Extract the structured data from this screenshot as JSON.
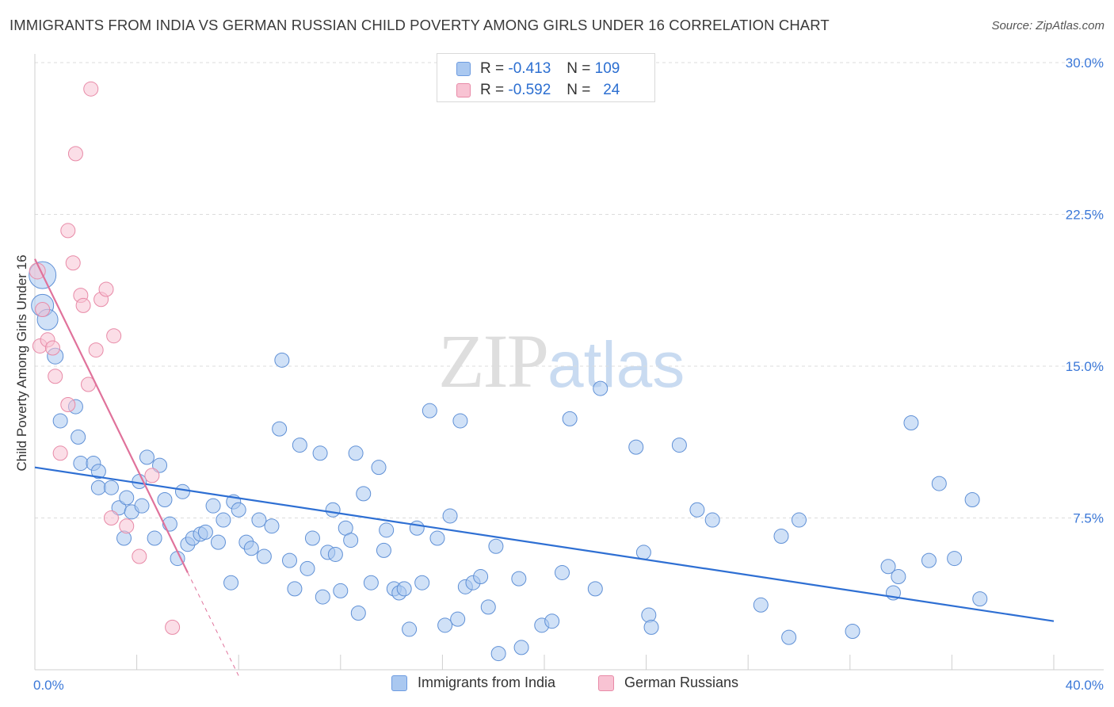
{
  "chart_data": {
    "type": "scatter",
    "title": "IMMIGRANTS FROM INDIA VS GERMAN RUSSIAN CHILD POVERTY AMONG GIRLS UNDER 16 CORRELATION CHART",
    "source": "Source: ZipAtlas.com",
    "xlabel": "",
    "ylabel": "Child Poverty Among Girls Under 16",
    "xlim": [
      0,
      40
    ],
    "ylim": [
      0,
      30
    ],
    "x_tick_labels": [
      "0.0%",
      "40.0%"
    ],
    "y_tick_labels": [
      "30.0%",
      "22.5%",
      "15.0%",
      "7.5%"
    ],
    "y_ticks": [
      30,
      22.5,
      15,
      7.5
    ],
    "grid": true,
    "watermark": {
      "left": "ZIP",
      "right": "atlas"
    },
    "legend": [
      {
        "r_label": "R =",
        "r": "-0.413",
        "n_label": "N =",
        "n": "109",
        "color": "#aac8f0",
        "border": "#6d9be0"
      },
      {
        "r_label": "R =",
        "r": "-0.592",
        "n_label": "N =",
        "n": "24",
        "color": "#f8c3d3",
        "border": "#e88aa7"
      }
    ],
    "series": [
      {
        "name": "Immigrants from India",
        "color": "#aac8f0",
        "border": "#5f90d6",
        "trend": {
          "x": [
            0,
            40
          ],
          "y": [
            10.0,
            2.4
          ],
          "color": "#2e6fd3"
        },
        "points": [
          [
            0.3,
            19.5,
            17
          ],
          [
            0.3,
            18.0,
            14
          ],
          [
            0.5,
            17.3,
            13
          ],
          [
            0.8,
            15.5,
            10
          ],
          [
            1.0,
            12.3,
            9
          ],
          [
            1.6,
            13.0,
            9
          ],
          [
            1.7,
            11.5,
            9
          ],
          [
            1.8,
            10.2,
            9
          ],
          [
            2.3,
            10.2,
            9
          ],
          [
            2.5,
            9.8,
            9
          ],
          [
            2.5,
            9.0,
            9
          ],
          [
            3.0,
            9.0,
            9
          ],
          [
            3.3,
            8.0,
            9
          ],
          [
            3.5,
            6.5,
            9
          ],
          [
            3.6,
            8.5,
            9
          ],
          [
            3.8,
            7.8,
            9
          ],
          [
            4.1,
            9.3,
            9
          ],
          [
            4.2,
            8.1,
            9
          ],
          [
            4.4,
            10.5,
            9
          ],
          [
            4.7,
            6.5,
            9
          ],
          [
            4.9,
            10.1,
            9
          ],
          [
            5.1,
            8.4,
            9
          ],
          [
            5.3,
            7.2,
            9
          ],
          [
            5.6,
            5.5,
            9
          ],
          [
            5.8,
            8.8,
            9
          ],
          [
            6.0,
            6.2,
            9
          ],
          [
            6.2,
            6.5,
            9
          ],
          [
            6.5,
            6.7,
            9
          ],
          [
            6.7,
            6.8,
            9
          ],
          [
            7.0,
            8.1,
            9
          ],
          [
            7.2,
            6.3,
            9
          ],
          [
            7.4,
            7.4,
            9
          ],
          [
            7.7,
            4.3,
            9
          ],
          [
            7.8,
            8.3,
            9
          ],
          [
            8.0,
            7.9,
            9
          ],
          [
            8.3,
            6.3,
            9
          ],
          [
            8.5,
            6.0,
            9
          ],
          [
            8.8,
            7.4,
            9
          ],
          [
            9.0,
            5.6,
            9
          ],
          [
            9.3,
            7.1,
            9
          ],
          [
            9.6,
            11.9,
            9
          ],
          [
            9.7,
            15.3,
            9
          ],
          [
            10.0,
            5.4,
            9
          ],
          [
            10.2,
            4.0,
            9
          ],
          [
            10.4,
            11.1,
            9
          ],
          [
            10.7,
            5.0,
            9
          ],
          [
            10.9,
            6.5,
            9
          ],
          [
            11.2,
            10.7,
            9
          ],
          [
            11.3,
            3.6,
            9
          ],
          [
            11.5,
            5.8,
            9
          ],
          [
            11.7,
            7.9,
            9
          ],
          [
            11.8,
            5.7,
            9
          ],
          [
            12.0,
            3.9,
            9
          ],
          [
            12.2,
            7.0,
            9
          ],
          [
            12.4,
            6.4,
            9
          ],
          [
            12.6,
            10.7,
            9
          ],
          [
            12.7,
            2.8,
            9
          ],
          [
            12.9,
            8.7,
            9
          ],
          [
            13.2,
            4.3,
            9
          ],
          [
            13.5,
            10.0,
            9
          ],
          [
            13.7,
            5.9,
            9
          ],
          [
            13.8,
            6.9,
            9
          ],
          [
            14.1,
            4.0,
            9
          ],
          [
            14.3,
            3.8,
            9
          ],
          [
            14.5,
            4.0,
            9
          ],
          [
            14.7,
            2.0,
            9
          ],
          [
            15.0,
            7.0,
            9
          ],
          [
            15.2,
            4.3,
            9
          ],
          [
            15.5,
            12.8,
            9
          ],
          [
            15.8,
            6.5,
            9
          ],
          [
            16.1,
            2.2,
            9
          ],
          [
            16.3,
            7.6,
            9
          ],
          [
            16.6,
            2.5,
            9
          ],
          [
            16.7,
            12.3,
            9
          ],
          [
            16.9,
            4.1,
            9
          ],
          [
            17.2,
            4.3,
            9
          ],
          [
            17.5,
            4.6,
            9
          ],
          [
            17.8,
            3.1,
            9
          ],
          [
            18.1,
            6.1,
            9
          ],
          [
            18.2,
            0.8,
            9
          ],
          [
            19.0,
            4.5,
            9
          ],
          [
            19.1,
            1.1,
            9
          ],
          [
            19.9,
            2.2,
            9
          ],
          [
            20.3,
            2.4,
            9
          ],
          [
            20.7,
            4.8,
            9
          ],
          [
            21.0,
            12.4,
            9
          ],
          [
            22.0,
            4.0,
            9
          ],
          [
            22.2,
            13.9,
            9
          ],
          [
            23.6,
            11.0,
            9
          ],
          [
            23.9,
            5.8,
            9
          ],
          [
            24.1,
            2.7,
            9
          ],
          [
            24.2,
            2.1,
            9
          ],
          [
            25.3,
            11.1,
            9
          ],
          [
            26.0,
            7.9,
            9
          ],
          [
            26.6,
            7.4,
            9
          ],
          [
            28.5,
            3.2,
            9
          ],
          [
            29.3,
            6.6,
            9
          ],
          [
            29.6,
            1.6,
            9
          ],
          [
            30.0,
            7.4,
            9
          ],
          [
            32.1,
            1.9,
            9
          ],
          [
            33.5,
            5.1,
            9
          ],
          [
            33.7,
            3.8,
            9
          ],
          [
            33.9,
            4.6,
            9
          ],
          [
            34.4,
            12.2,
            9
          ],
          [
            35.1,
            5.4,
            9
          ],
          [
            35.5,
            9.2,
            9
          ],
          [
            36.1,
            5.5,
            9
          ],
          [
            36.8,
            8.4,
            9
          ],
          [
            37.1,
            3.5,
            9
          ]
        ]
      },
      {
        "name": "German Russians",
        "color": "#f8c3d3",
        "border": "#e88aa7",
        "trend": {
          "x": [
            0,
            6.0,
            8.0
          ],
          "y": [
            20.3,
            4.8,
            -0.3
          ],
          "color": "#e0729b"
        },
        "points": [
          [
            0.1,
            19.7,
            10
          ],
          [
            0.3,
            17.8,
            9
          ],
          [
            0.2,
            16.0,
            9
          ],
          [
            0.5,
            16.3,
            9
          ],
          [
            0.7,
            15.9,
            9
          ],
          [
            0.8,
            14.5,
            9
          ],
          [
            1.0,
            10.7,
            9
          ],
          [
            1.3,
            13.1,
            9
          ],
          [
            1.3,
            21.7,
            9
          ],
          [
            1.5,
            20.1,
            9
          ],
          [
            1.6,
            25.5,
            9
          ],
          [
            1.8,
            18.5,
            9
          ],
          [
            1.9,
            18.0,
            9
          ],
          [
            2.1,
            14.1,
            9
          ],
          [
            2.2,
            28.7,
            9
          ],
          [
            2.4,
            15.8,
            9
          ],
          [
            2.6,
            18.3,
            9
          ],
          [
            2.8,
            18.8,
            9
          ],
          [
            3.0,
            7.5,
            9
          ],
          [
            3.1,
            16.5,
            9
          ],
          [
            3.6,
            7.1,
            9
          ],
          [
            4.1,
            5.6,
            9
          ],
          [
            4.6,
            9.6,
            9
          ],
          [
            5.4,
            2.1,
            9
          ]
        ]
      }
    ]
  }
}
